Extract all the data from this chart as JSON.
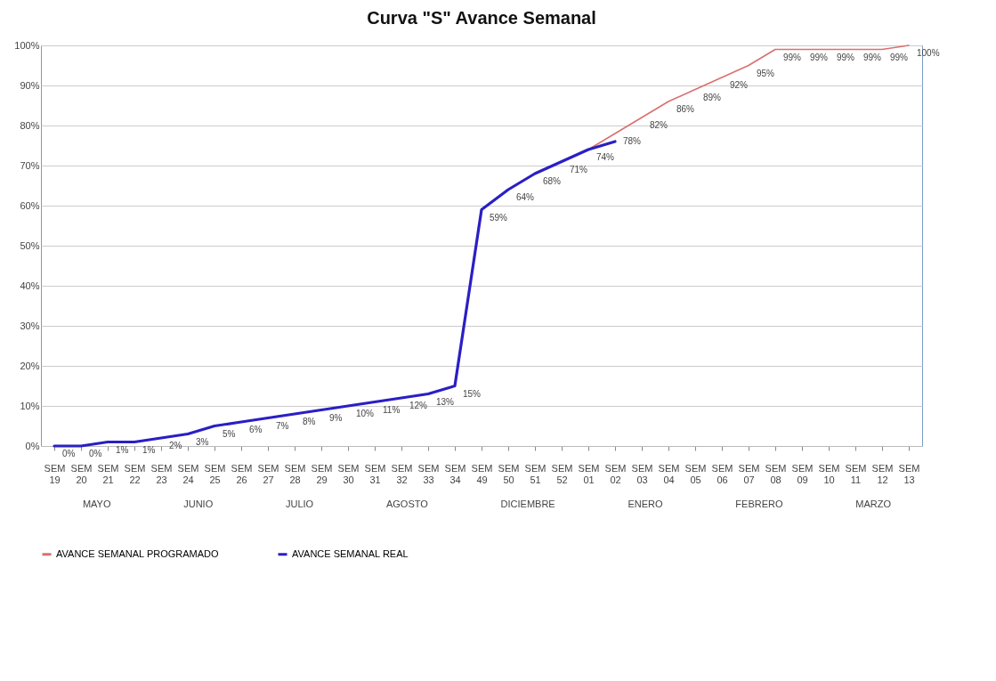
{
  "chart_data": {
    "type": "line",
    "title": "Curva \"S\" Avance Semanal",
    "categories": [
      "SEM 19",
      "SEM 20",
      "SEM 21",
      "SEM 22",
      "SEM 23",
      "SEM 24",
      "SEM 25",
      "SEM 26",
      "SEM 27",
      "SEM 28",
      "SEM 29",
      "SEM 30",
      "SEM 31",
      "SEM 32",
      "SEM 33",
      "SEM 34",
      "SEM 49",
      "SEM 50",
      "SEM 51",
      "SEM 52",
      "SEM 01",
      "SEM 02",
      "SEM 03",
      "SEM 04",
      "SEM 05",
      "SEM 06",
      "SEM 07",
      "SEM 08",
      "SEM 09",
      "SEM 10",
      "SEM 11",
      "SEM 12",
      "SEM 13"
    ],
    "series": [
      {
        "name": "AVANCE SEMANAL PROGRAMADO",
        "color": "#d9706f",
        "values": [
          null,
          null,
          null,
          null,
          null,
          null,
          null,
          null,
          null,
          null,
          null,
          null,
          null,
          null,
          null,
          null,
          null,
          null,
          null,
          null,
          74,
          78,
          82,
          86,
          89,
          92,
          95,
          99,
          99,
          99,
          99,
          99,
          100
        ],
        "value_labels": [
          null,
          null,
          null,
          null,
          null,
          null,
          null,
          null,
          null,
          null,
          null,
          null,
          null,
          null,
          null,
          null,
          null,
          null,
          null,
          null,
          null,
          "78%",
          "82%",
          "86%",
          "89%",
          "92%",
          "95%",
          "99%",
          "99%",
          "99%",
          "99%",
          "99%",
          "100%"
        ]
      },
      {
        "name": "AVANCE SEMANAL REAL",
        "color": "#2a1fc4",
        "values": [
          0,
          0,
          1,
          1,
          2,
          3,
          5,
          6,
          7,
          8,
          9,
          10,
          11,
          12,
          13,
          15,
          59,
          64,
          68,
          71,
          74,
          76,
          null,
          null,
          null,
          null,
          null,
          null,
          null,
          null,
          null,
          null,
          null
        ],
        "value_labels": [
          "0%",
          "0%",
          "1%",
          "1%",
          "2%",
          "3%",
          "5%",
          "6%",
          "7%",
          "8%",
          "9%",
          "10%",
          "11%",
          "12%",
          "13%",
          "15%",
          "59%",
          "64%",
          "68%",
          "71%",
          "74%",
          null,
          null,
          null,
          null,
          null,
          null,
          null,
          null,
          null,
          null,
          null,
          null
        ]
      }
    ],
    "ylim": [
      0,
      100
    ],
    "yticks": [
      {
        "value": 0,
        "label": "0%"
      },
      {
        "value": 10,
        "label": "10%"
      },
      {
        "value": 20,
        "label": "20%"
      },
      {
        "value": 30,
        "label": "30%"
      },
      {
        "value": 40,
        "label": "40%"
      },
      {
        "value": 50,
        "label": "50%"
      },
      {
        "value": 60,
        "label": "60%"
      },
      {
        "value": 70,
        "label": "70%"
      },
      {
        "value": 80,
        "label": "80%"
      },
      {
        "value": 90,
        "label": "90%"
      },
      {
        "value": 100,
        "label": "100%"
      }
    ],
    "grid": "y",
    "legend": "bottom",
    "marker": "none",
    "annotations": [
      "MAYO",
      "JUNIO",
      "JULIO",
      "AGOSTO",
      "DICIEMBRE",
      "ENERO",
      "FEBRERO",
      "MARZO"
    ]
  }
}
